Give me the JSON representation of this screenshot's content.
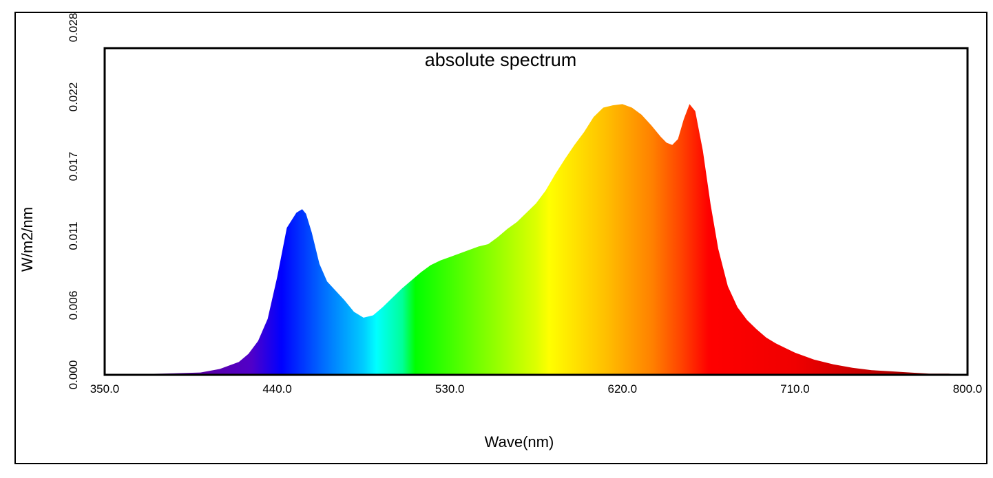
{
  "chart_data": {
    "type": "area",
    "title": "absolute spectrum",
    "xlabel": "Wave(nm)",
    "ylabel": "W/m2/nm",
    "xlim": [
      350.0,
      800.0
    ],
    "ylim": [
      0.0,
      0.028
    ],
    "x_ticks": [
      "350.0",
      "440.0",
      "530.0",
      "620.0",
      "710.0",
      "800.0"
    ],
    "y_ticks": [
      "0.000",
      "0.006",
      "0.011",
      "0.017",
      "0.022",
      "0.028"
    ],
    "grid": false,
    "legend": "none",
    "fill": "visible-spectrum color gradient",
    "x": [
      350,
      380,
      400,
      410,
      420,
      425,
      430,
      435,
      440,
      445,
      450,
      453,
      455,
      458,
      462,
      466,
      470,
      475,
      480,
      485,
      490,
      495,
      500,
      505,
      510,
      515,
      520,
      525,
      530,
      535,
      540,
      545,
      550,
      555,
      560,
      565,
      570,
      575,
      580,
      585,
      590,
      595,
      600,
      605,
      610,
      615,
      620,
      625,
      630,
      635,
      640,
      643,
      646,
      649,
      652,
      655,
      658,
      662,
      666,
      670,
      675,
      680,
      685,
      690,
      695,
      700,
      710,
      720,
      730,
      740,
      750,
      760,
      770,
      780,
      790,
      800
    ],
    "y": [
      0.0,
      0.0001,
      0.0002,
      0.0005,
      0.0011,
      0.0018,
      0.0029,
      0.0048,
      0.0084,
      0.0126,
      0.0139,
      0.0142,
      0.0138,
      0.0122,
      0.0095,
      0.008,
      0.0073,
      0.0064,
      0.0054,
      0.0049,
      0.0051,
      0.0058,
      0.0066,
      0.0074,
      0.0081,
      0.0088,
      0.0094,
      0.0098,
      0.0101,
      0.0104,
      0.0107,
      0.011,
      0.0112,
      0.0118,
      0.0125,
      0.0131,
      0.0139,
      0.0147,
      0.0158,
      0.0172,
      0.0185,
      0.0197,
      0.0208,
      0.0221,
      0.0229,
      0.0231,
      0.0232,
      0.0229,
      0.0223,
      0.0214,
      0.0204,
      0.0199,
      0.0197,
      0.0202,
      0.0219,
      0.0232,
      0.0226,
      0.0192,
      0.0146,
      0.0108,
      0.0076,
      0.0058,
      0.0047,
      0.0039,
      0.0032,
      0.0027,
      0.0019,
      0.0013,
      0.0009,
      0.0006,
      0.0004,
      0.0003,
      0.0002,
      0.0001,
      0.0001,
      0.0
    ]
  }
}
